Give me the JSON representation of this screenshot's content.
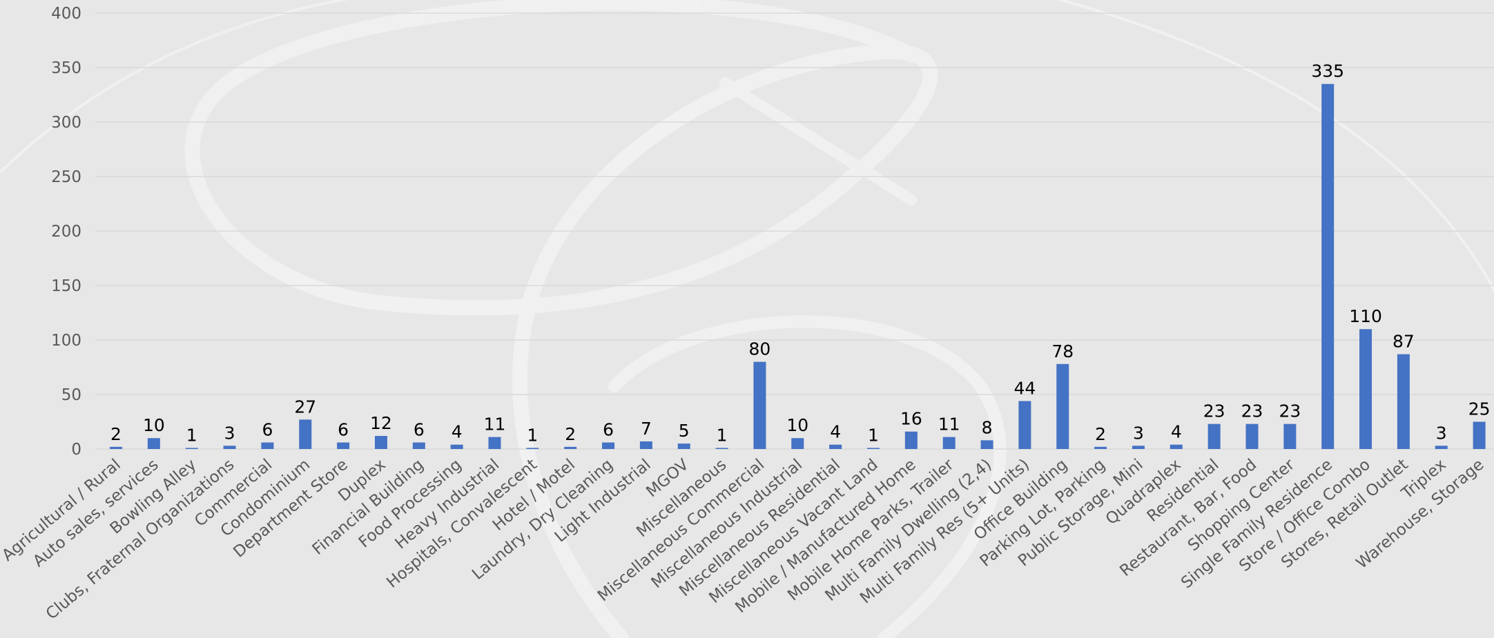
{
  "chart_data": {
    "type": "bar",
    "title": "",
    "xlabel": "",
    "ylabel": "",
    "ylim": [
      0,
      400
    ],
    "yticks": [
      0,
      50,
      100,
      150,
      200,
      250,
      300,
      350,
      400
    ],
    "grid": true,
    "legend": "none",
    "bar_color": "#4472c4",
    "background_color": "#e7e7e7",
    "data_labels": true,
    "categories": [
      "Agricultural / Rural",
      "Auto sales, services",
      "Bowling Alley",
      "Clubs, Fraternal Organizations",
      "Commercial",
      "Condominium",
      "Department Store",
      "Duplex",
      "Financial Building",
      "Food Processing",
      "Heavy Industrial",
      "Hospitals, Convalescent",
      "Hotel / Motel",
      "Laundry, Dry Cleaning",
      "Light Industrial",
      "MGOV",
      "Miscellaneous",
      "Miscellaneous Commercial",
      "Miscellaneous Industrial",
      "Miscellaneous Residential",
      "Miscellaneous Vacant Land",
      "Mobile / Manufactured Home",
      "Mobile Home Parks, Trailer",
      "Multi Family Dwelling (2,4)",
      "Multi Family Res (5+ Units)",
      "Office Building",
      "Parking Lot, Parking",
      "Public Storage, Mini",
      "Quadraplex",
      "Residential",
      "Restaurant, Bar, Food",
      "Shopping Center",
      "Single Family Residence",
      "Store / Office Combo",
      "Stores, Retail Outlet",
      "Triplex",
      "Warehouse, Storage"
    ],
    "values": [
      2,
      10,
      1,
      3,
      6,
      27,
      6,
      12,
      6,
      4,
      11,
      1,
      2,
      6,
      7,
      5,
      1,
      80,
      10,
      4,
      1,
      16,
      11,
      8,
      44,
      78,
      2,
      3,
      4,
      23,
      23,
      23,
      335,
      110,
      87,
      3,
      25
    ]
  }
}
